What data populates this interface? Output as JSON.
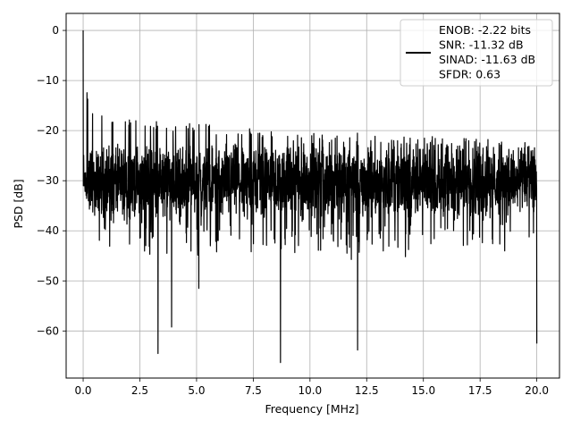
{
  "chart_data": {
    "type": "line",
    "title": "",
    "xlabel": "Frequency [MHz]",
    "ylabel": "PSD [dB]",
    "xlim": [
      -0.75,
      21.0
    ],
    "ylim": [
      -69.4,
      3.4
    ],
    "xticks": [
      0.0,
      2.5,
      5.0,
      7.5,
      10.0,
      12.5,
      15.0,
      17.5,
      20.0
    ],
    "xtick_labels": [
      "0.0",
      "2.5",
      "5.0",
      "7.5",
      "10.0",
      "12.5",
      "15.0",
      "17.5",
      "20.0"
    ],
    "yticks": [
      0,
      -10,
      -20,
      -30,
      -40,
      -50,
      -60
    ],
    "ytick_labels": [
      "0",
      "−10",
      "−20",
      "−30",
      "−40",
      "−50",
      "−60"
    ],
    "grid": true,
    "legend_position": "upper-right",
    "legend_lines": [
      "ENOB: -2.22 bits",
      "SNR: -11.32 dB",
      "SINAD: -11.63 dB",
      "SFDR: 0.63"
    ],
    "series": [
      {
        "color": "#000000",
        "description_of_shape": "dense noise floor",
        "peak": {
          "x": 0.0,
          "y": 0.0
        },
        "deep_dips": [
          {
            "x": 3.3,
            "y": -64.5
          },
          {
            "x": 3.9,
            "y": -59.2
          },
          {
            "x": 5.1,
            "y": -51.5
          },
          {
            "x": 8.7,
            "y": -66.3
          },
          {
            "x": 12.1,
            "y": -63.8
          },
          {
            "x": 20.0,
            "y": -62.5
          }
        ],
        "upper_envelope": [
          {
            "x": 0.05,
            "y": -9.0
          },
          {
            "x": 0.3,
            "y": -15.0
          },
          {
            "x": 1.0,
            "y": -17.5
          },
          {
            "x": 2.5,
            "y": -18.0
          },
          {
            "x": 5.0,
            "y": -18.5
          },
          {
            "x": 7.5,
            "y": -19.5
          },
          {
            "x": 10.0,
            "y": -20.5
          },
          {
            "x": 12.5,
            "y": -20.5
          },
          {
            "x": 15.0,
            "y": -21.0
          },
          {
            "x": 17.5,
            "y": -21.5
          },
          {
            "x": 20.0,
            "y": -22.5
          }
        ],
        "lower_envelope": [
          {
            "x": 0.05,
            "y": -23.0
          },
          {
            "x": 0.5,
            "y": -38.0
          },
          {
            "x": 2.5,
            "y": -40.0
          },
          {
            "x": 5.0,
            "y": -40.0
          },
          {
            "x": 10.0,
            "y": -40.0
          },
          {
            "x": 15.0,
            "y": -40.0
          },
          {
            "x": 20.0,
            "y": -40.0
          }
        ],
        "typical_band": [
          -35,
          -25
        ]
      }
    ]
  }
}
